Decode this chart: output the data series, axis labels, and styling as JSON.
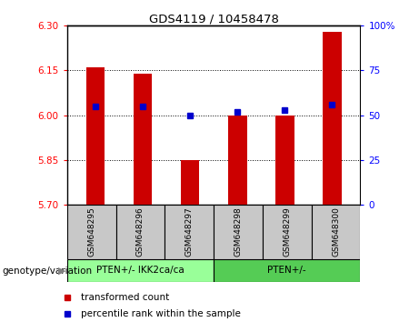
{
  "title": "GDS4119 / 10458478",
  "samples": [
    "GSM648295",
    "GSM648296",
    "GSM648297",
    "GSM648298",
    "GSM648299",
    "GSM648300"
  ],
  "transformed_counts": [
    6.16,
    6.14,
    5.85,
    6.0,
    6.0,
    6.28
  ],
  "percentile_ranks": [
    55,
    55,
    50,
    52,
    53,
    56
  ],
  "ylim_left": [
    5.7,
    6.3
  ],
  "ylim_right": [
    0,
    100
  ],
  "yticks_left": [
    5.7,
    5.85,
    6.0,
    6.15,
    6.3
  ],
  "yticks_right": [
    0,
    25,
    50,
    75,
    100
  ],
  "bar_color": "#cc0000",
  "dot_color": "#0000cc",
  "bar_base": 5.7,
  "grid_ticks": [
    5.85,
    6.0,
    6.15
  ],
  "group1_label": "PTEN+/- IKK2ca/ca",
  "group2_label": "PTEN+/-",
  "group1_indices": [
    0,
    1,
    2
  ],
  "group2_indices": [
    3,
    4,
    5
  ],
  "group1_color": "#99ff99",
  "group2_color": "#55cc55",
  "label_genotype": "genotype/variation",
  "legend_bar": "transformed count",
  "legend_dot": "percentile rank within the sample",
  "bg_color": "#c8c8c8",
  "bar_width": 0.4
}
